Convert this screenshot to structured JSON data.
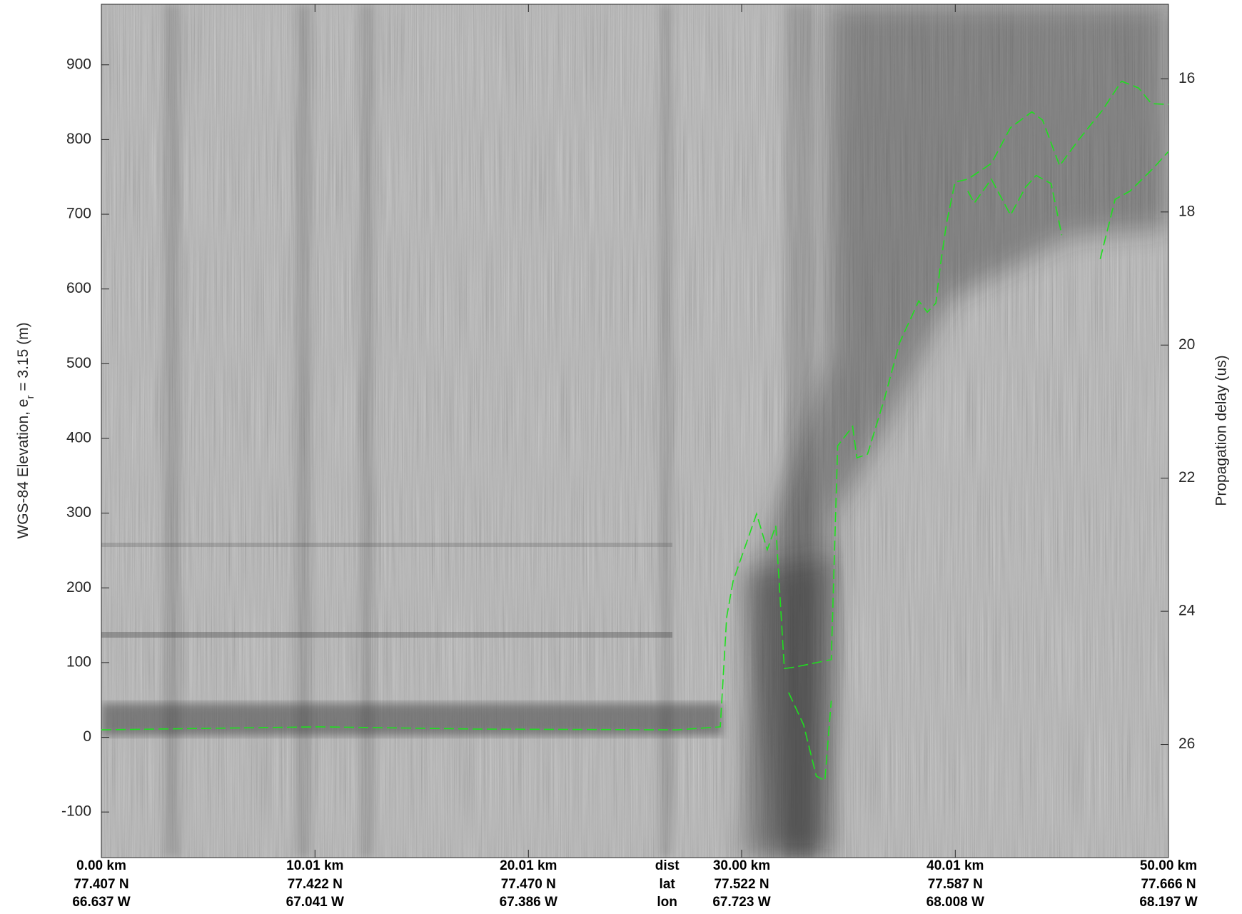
{
  "chart_data": {
    "type": "line",
    "y_label": {
      "text": "WGS-84 Elevation, e",
      "subscript": "r",
      "suffix": " = 3.15 (m)"
    },
    "y2_label": "Propagation delay (us)",
    "xlim": [
      0,
      50
    ],
    "xticks": [
      {
        "value": 0,
        "label": "0.00 km"
      },
      {
        "value": 10.01,
        "label": "10.01 km"
      },
      {
        "value": 20.01,
        "label": "20.01 km"
      },
      {
        "value": 30.0,
        "label": "30.00 km"
      },
      {
        "value": 40.01,
        "label": "40.01 km"
      },
      {
        "value": 50.0,
        "label": "50.00 km"
      }
    ],
    "lat_labels": [
      "77.407 N",
      "77.422 N",
      "77.470 N",
      "77.522 N",
      "77.587 N",
      "77.666 N"
    ],
    "lon_labels": [
      "66.637 W",
      "67.041 W",
      "67.386 W",
      "67.723 W",
      "68.008 W",
      "68.197 W"
    ],
    "row_names": [
      "dist",
      "lat",
      "lon"
    ],
    "ylim": [
      -161,
      981
    ],
    "yticks": [
      -100,
      0,
      100,
      200,
      300,
      400,
      500,
      600,
      700,
      800,
      900
    ],
    "y2lim": [
      14.88,
      27.7
    ],
    "y2ticks": [
      16,
      18,
      20,
      22,
      24,
      26
    ],
    "series": [
      {
        "color": "#1ee01e",
        "x": [
          0,
          10.2,
          17.6,
          27,
          29,
          29.3,
          29.6,
          30.7,
          31.2,
          31.6,
          32.0,
          32.5,
          34.2,
          34.5,
          35.2,
          35.4,
          35.9,
          36.7,
          37.4,
          38.3,
          38.7,
          39.1,
          39.3,
          39.6,
          40.0,
          40.6,
          41.7,
          42.6,
          43.6,
          44.1,
          44.9,
          45.8,
          46.9,
          47.8,
          48.6,
          49.2,
          50
        ],
        "values": [
          10,
          14,
          11,
          10,
          14,
          161,
          209,
          299,
          251,
          283,
          92,
          94,
          104,
          390,
          416,
          374,
          379,
          454,
          528,
          584,
          569,
          581,
          629,
          688,
          743,
          747,
          768,
          816,
          837,
          826,
          765,
          800,
          839,
          878,
          869,
          848,
          847
        ]
      },
      {
        "color": "#1ee01e",
        "x": [
          32.2,
          32.9,
          33.5,
          33.9,
          34.2,
          34.3,
          40.6,
          40.9,
          41.7,
          42.6,
          43.3,
          43.8,
          44.5,
          45.0,
          46.5,
          46.8,
          47.5,
          48.2,
          49.3,
          50
        ],
        "values": [
          60,
          17,
          -52,
          -58,
          49,
          null,
          731,
          715,
          747,
          699,
          736,
          752,
          741,
          672,
          null,
          640,
          720,
          731,
          762,
          784
        ]
      }
    ]
  }
}
